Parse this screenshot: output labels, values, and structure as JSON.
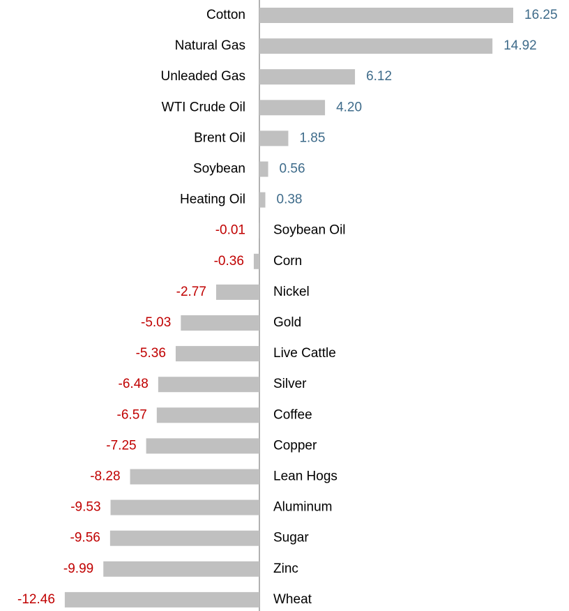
{
  "chart_data": {
    "type": "bar",
    "orientation": "horizontal",
    "categories": [
      "Cotton",
      "Natural Gas",
      "Unleaded Gas",
      "WTI Crude Oil",
      "Brent Oil",
      "Soybean",
      "Heating Oil",
      "Soybean Oil",
      "Corn",
      "Nickel",
      "Gold",
      "Live Cattle",
      "Silver",
      "Coffee",
      "Copper",
      "Lean Hogs",
      "Aluminum",
      "Sugar",
      "Zinc",
      "Wheat"
    ],
    "values": [
      16.25,
      14.92,
      6.12,
      4.2,
      1.85,
      0.56,
      0.38,
      -0.01,
      -0.36,
      -2.77,
      -5.03,
      -5.36,
      -6.48,
      -6.57,
      -7.25,
      -8.28,
      -9.53,
      -9.56,
      -9.99,
      -12.46
    ],
    "value_labels": [
      "16.25",
      "14.92",
      "6.12",
      "4.20",
      "1.85",
      "0.56",
      "0.38",
      "-0.01",
      "-0.36",
      "-2.77",
      "-5.03",
      "-5.36",
      "-6.48",
      "-6.57",
      "-7.25",
      "-8.28",
      "-9.53",
      "-9.56",
      "-9.99",
      "-12.46"
    ],
    "color": "#c0c0c0",
    "positive_label_color": "#3e6b8a",
    "negative_label_color": "#c00000"
  }
}
